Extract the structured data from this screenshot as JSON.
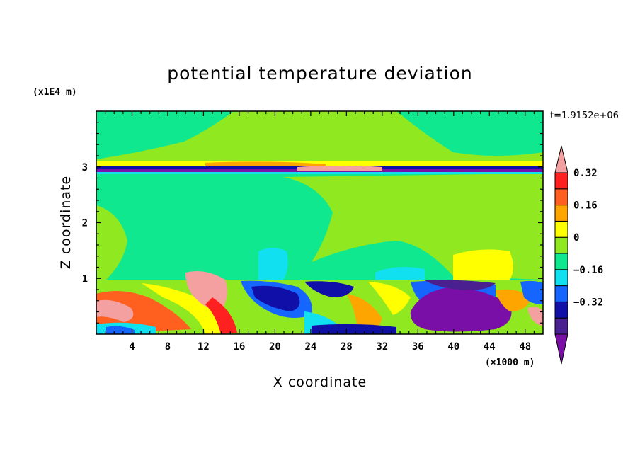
{
  "chart_data": {
    "type": "heatmap",
    "title": "potential temperature deviation",
    "xlabel": "X coordinate",
    "ylabel": "Z coordinate",
    "x_unit": "(×1000 m)",
    "y_unit": "(x1E4 m)",
    "time_label": "t=1.9152e+06",
    "xlim": [
      0,
      50
    ],
    "ylim": [
      0,
      4
    ],
    "x_ticks": [
      "4",
      "8",
      "12",
      "16",
      "20",
      "24",
      "28",
      "32",
      "36",
      "40",
      "44",
      "48"
    ],
    "y_ticks": [
      "1",
      "2",
      "3"
    ],
    "colorbar": {
      "levels": [
        -0.48,
        -0.4,
        -0.32,
        -0.24,
        -0.16,
        -0.08,
        0,
        0.08,
        0.16,
        0.24,
        0.32,
        0.4
      ],
      "labels": [
        "0.32",
        "0.16",
        "0",
        "−0.16",
        "−0.32"
      ],
      "colors": [
        "#7a0fa8",
        "#4a2090",
        "#1010a8",
        "#1565ff",
        "#10e0f0",
        "#10e890",
        "#90e820",
        "#ffff00",
        "#ffa500",
        "#ff6020",
        "#ff2020",
        "#f4a0a0"
      ]
    }
  }
}
